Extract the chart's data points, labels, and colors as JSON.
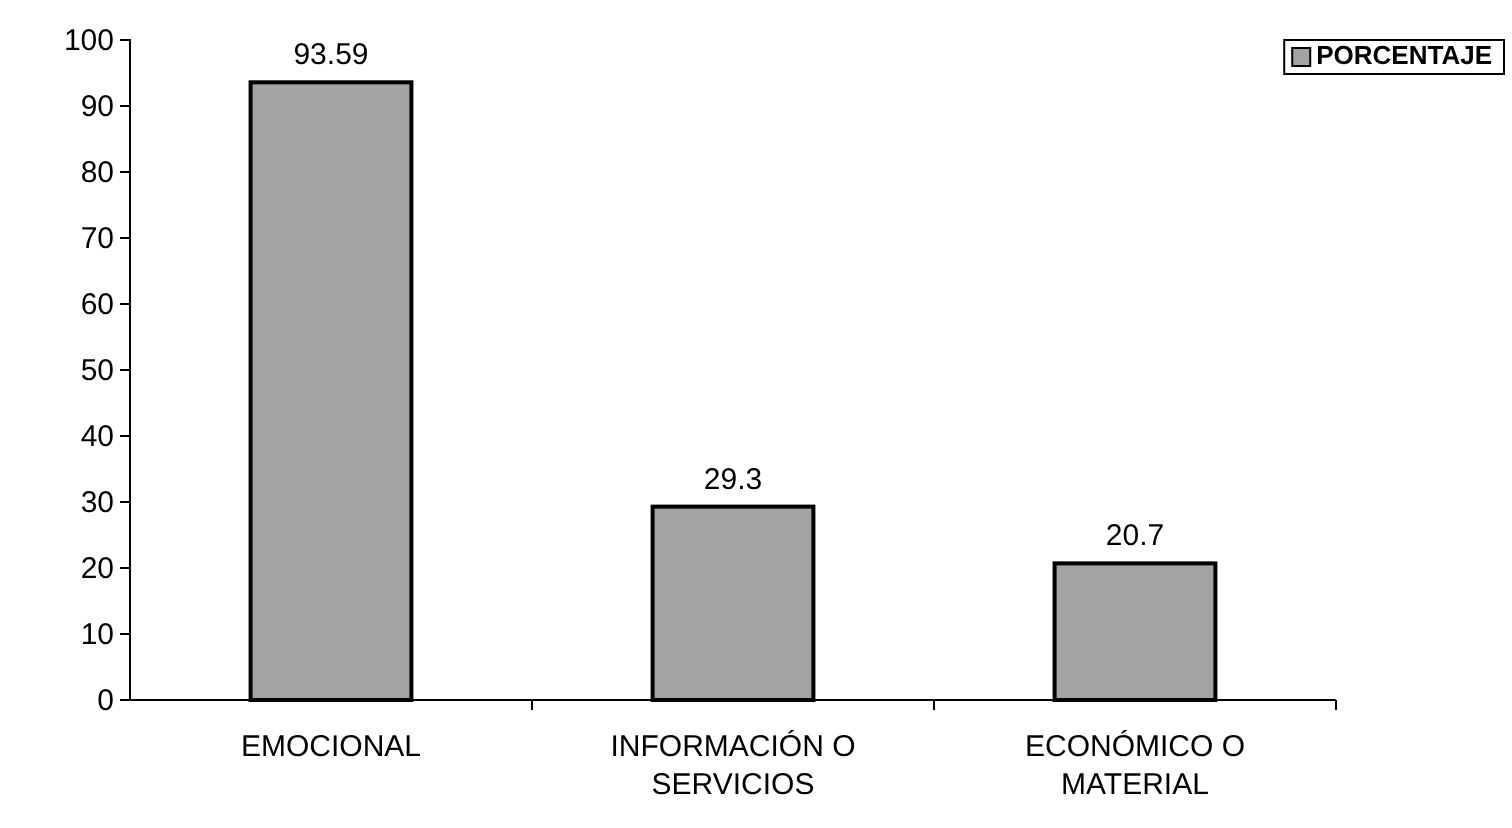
{
  "chart_data": {
    "type": "bar",
    "categories": [
      "EMOCIONAL",
      "INFORMACIÓN O SERVICIOS",
      "ECONÓMICO O MATERIAL"
    ],
    "series": [
      {
        "name": "PORCENTAJE",
        "color": "#a3a3a3",
        "values": [
          93.59,
          29.3,
          20.7
        ]
      }
    ],
    "ylim": [
      0,
      100
    ],
    "yticks": [
      0,
      10,
      20,
      30,
      40,
      50,
      60,
      70,
      80,
      90,
      100
    ],
    "data_labels": true,
    "legend": "top right",
    "grid": false
  }
}
